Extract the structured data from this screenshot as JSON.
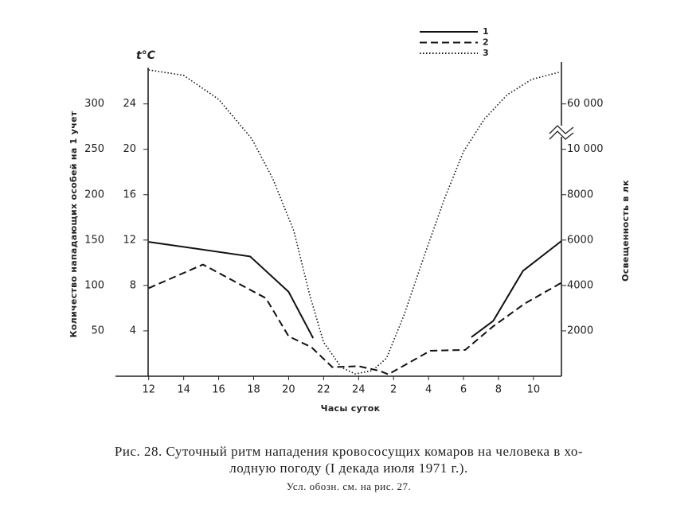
{
  "chart_data": {
    "type": "line",
    "temperature_label": "t°C",
    "xlabel": "Часы суток",
    "ylabel": "Количество нападающих особей на 1 учет",
    "y2label": "Освещенность в лк",
    "xlim": [
      10.1,
      35.6
    ],
    "xticks": [
      12,
      14,
      16,
      18,
      20,
      22,
      24,
      {
        "value": 26,
        "label": "2"
      },
      {
        "value": 28,
        "label": "4"
      },
      {
        "value": 30,
        "label": "6"
      },
      {
        "value": 32,
        "label": "8"
      },
      {
        "value": 34,
        "label": "10"
      }
    ],
    "ylim": [
      0,
      340
    ],
    "yticks": [
      50,
      100,
      150,
      200,
      250,
      300
    ],
    "tlim": [
      0,
      27.2
    ],
    "tticks": [
      4,
      8,
      12,
      16,
      20,
      24
    ],
    "y2lim": [
      0,
      100000
    ],
    "y2ticks": [
      2000,
      4000,
      6000,
      8000,
      {
        "value": 10000,
        "label": "10 000"
      },
      {
        "value": 60000,
        "label": "60 000"
      }
    ],
    "y2_broken": true,
    "series": [
      {
        "name": "1",
        "color": "#111",
        "dash": "solid",
        "x": [
          12,
          17.8,
          20,
          21.4,
          null,
          30.45,
          31.7,
          33.4,
          35.6
        ],
        "values": [
          148,
          132,
          93,
          42,
          null,
          43,
          61,
          116,
          149
        ]
      },
      {
        "name": "2",
        "color": "#111",
        "dash": "dashed",
        "x": [
          12,
          15.1,
          18.7,
          20,
          21.3,
          22.5,
          24,
          25.2,
          25.7,
          28.1,
          30.1,
          31.7,
          33.5,
          35.6
        ],
        "values": [
          97,
          123,
          86,
          44,
          32,
          10,
          11,
          6,
          2,
          28,
          29,
          55,
          80,
          103
        ]
      },
      {
        "name": "3",
        "color": "#111",
        "dash": "dotted",
        "axis": "y2",
        "x": [
          12,
          14,
          16,
          17.9,
          19.1,
          20.3,
          21.2,
          22,
          23,
          23.8,
          24.8,
          25.6,
          26.6,
          27.8,
          28.9,
          30,
          31.2,
          32.5,
          33.9,
          35.5
        ],
        "values": [
          97500,
          91500,
          65000,
          21500,
          8700,
          6400,
          3600,
          1500,
          400,
          100,
          250,
          800,
          2700,
          5400,
          7800,
          9900,
          43500,
          70000,
          87000,
          95000
        ]
      }
    ],
    "caption": [
      "Рис. 28. Суточный ритм нападения кровососущих комаров на человека в хо-",
      "лодную погоду (I декада июля 1971 г.).",
      "Усл. обозн. см. на рис. 27."
    ]
  }
}
